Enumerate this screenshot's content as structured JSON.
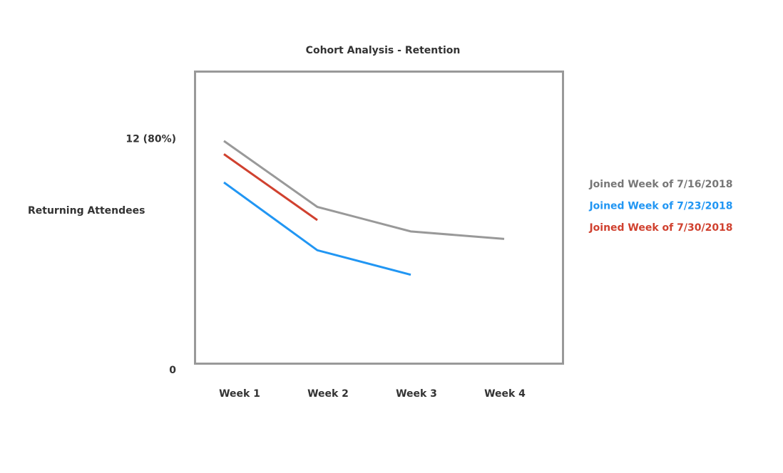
{
  "chart_data": {
    "type": "line",
    "title": "Cohort Analysis - Retention",
    "y_label": "Returning Attendees",
    "categories": [
      "Week 1",
      "Week 2",
      "Week 3",
      "Week 4"
    ],
    "ylim": [
      0,
      15.5
    ],
    "yticks": [
      0,
      {
        "value": 12,
        "label": "12 (80%)"
      }
    ],
    "grid": false,
    "legend": "right",
    "series": [
      {
        "name": "Joined Week of 7/16/2018",
        "color": "#999999",
        "label_color": "#777777",
        "values": [
          11.8,
          8.3,
          7.0,
          6.6
        ]
      },
      {
        "name": "Joined Week of 7/23/2018",
        "color": "#2196f3",
        "label_color": "#2196f3",
        "values": [
          9.6,
          6.0,
          4.7,
          null
        ]
      },
      {
        "name": "Joined Week of 7/30/2018",
        "color": "#d0412f",
        "label_color": "#d0412f",
        "values": [
          11.1,
          7.6,
          null,
          null
        ]
      }
    ]
  }
}
